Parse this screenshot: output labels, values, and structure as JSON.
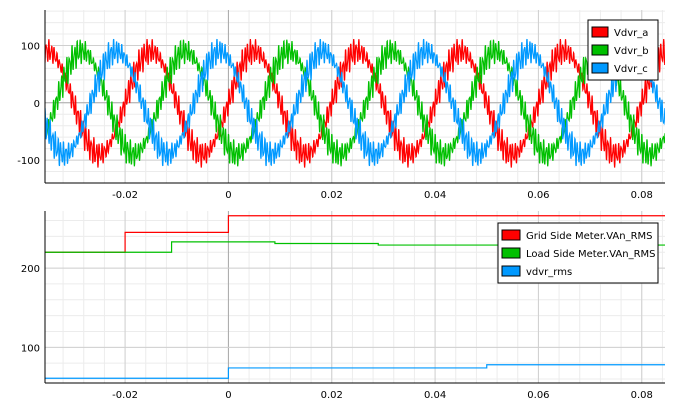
{
  "chart_data": [
    {
      "type": "line",
      "xlim": [
        -0.0355,
        0.0845
      ],
      "ylim": [
        -140,
        162
      ],
      "xticks": [
        -0.02,
        0,
        0.02,
        0.04,
        0.06,
        0.08
      ],
      "xtick_labels": [
        "-0.02",
        "0",
        "0.02",
        "0.04",
        "0.06",
        "0.08"
      ],
      "yticks": [
        -100,
        0,
        100
      ],
      "ytick_labels": [
        "-100",
        "0",
        "100"
      ],
      "grid": true,
      "legend_position": "top-right",
      "series": [
        {
          "name": "Vdvr_a",
          "color": "#ff0000",
          "amplitude": 90,
          "frequency_hz": 50,
          "phase_deg": 0,
          "ripple_amplitude": 28
        },
        {
          "name": "Vdvr_b",
          "color": "#00c000",
          "amplitude": 90,
          "frequency_hz": 50,
          "phase_deg": -120,
          "ripple_amplitude": 28
        },
        {
          "name": "Vdvr_c",
          "color": "#0099ff",
          "amplitude": 90,
          "frequency_hz": 50,
          "phase_deg": 120,
          "ripple_amplitude": 28
        }
      ]
    },
    {
      "type": "line",
      "xlim": [
        -0.0355,
        0.0845
      ],
      "ylim": [
        55,
        272
      ],
      "xticks": [
        -0.02,
        0,
        0.02,
        0.04,
        0.06,
        0.08
      ],
      "xtick_labels": [
        "-0.02",
        "0",
        "0.02",
        "0.04",
        "0.06",
        "0.08"
      ],
      "yticks": [
        100,
        200
      ],
      "ytick_labels": [
        "100",
        "200"
      ],
      "grid": true,
      "legend_position": "top-right",
      "series": [
        {
          "name": "Grid Side Meter.VAn_RMS",
          "color": "#ff0000",
          "x": [
            -0.0355,
            -0.02,
            -0.02,
            0.0,
            0.0,
            0.0845
          ],
          "y": [
            220,
            220,
            245,
            245,
            266,
            266
          ]
        },
        {
          "name": "Load Side Meter.VAn_RMS",
          "color": "#00c000",
          "x": [
            -0.0355,
            -0.011,
            -0.011,
            0.009,
            0.009,
            0.029,
            0.029,
            0.0845
          ],
          "y": [
            220,
            220,
            233,
            233,
            231,
            231,
            229,
            229
          ]
        },
        {
          "name": "vdvr_rms",
          "color": "#0099ff",
          "x": [
            -0.0355,
            0.0,
            0.0,
            0.05,
            0.05,
            0.0845
          ],
          "y": [
            61,
            61,
            74,
            74,
            78,
            78
          ]
        }
      ]
    }
  ]
}
